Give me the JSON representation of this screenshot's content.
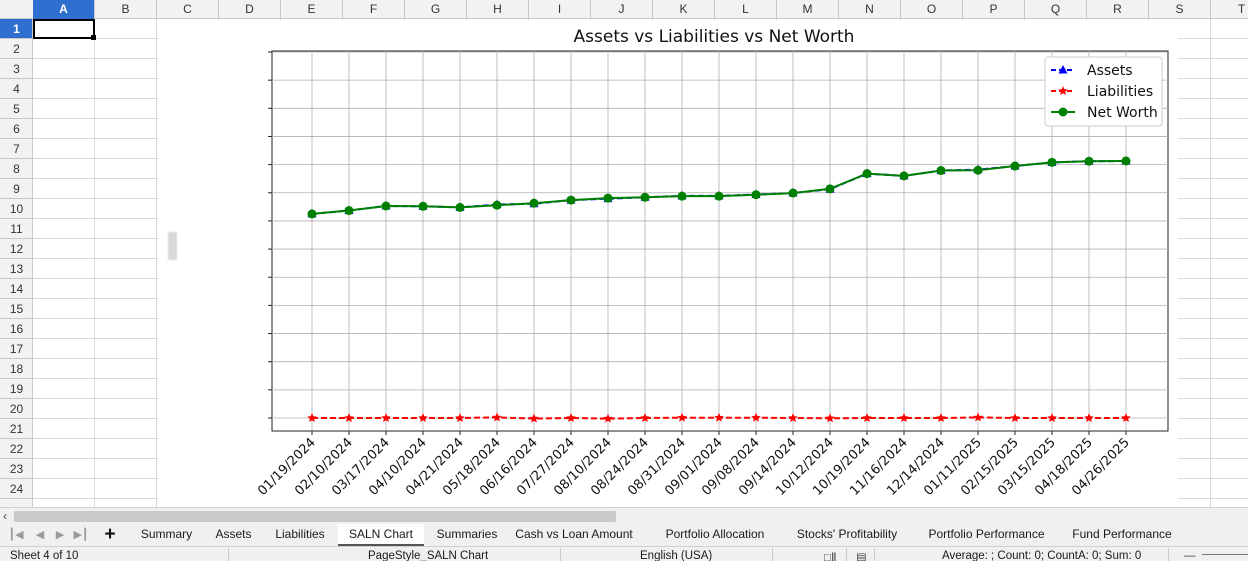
{
  "columns": [
    "A",
    "B",
    "C",
    "D",
    "E",
    "F",
    "G",
    "H",
    "I",
    "J",
    "K",
    "L",
    "M",
    "N",
    "O",
    "P",
    "Q",
    "R",
    "S",
    "T"
  ],
  "rows": [
    "1",
    "2",
    "3",
    "4",
    "5",
    "6",
    "7",
    "8",
    "9",
    "10",
    "11",
    "12",
    "13",
    "14",
    "15",
    "16",
    "17",
    "18",
    "19",
    "20",
    "21",
    "22",
    "23",
    "24"
  ],
  "active_column": "A",
  "active_row": "1",
  "sheet_tabs": [
    {
      "label": "Summary"
    },
    {
      "label": "Assets"
    },
    {
      "label": "Liabilities"
    },
    {
      "label": "SALN Chart",
      "active": true
    },
    {
      "label": "Summaries"
    },
    {
      "label": "Cash vs Loan Amount"
    },
    {
      "label": "Portfolio Allocation"
    },
    {
      "label": "Stocks' Profitability"
    },
    {
      "label": "Portfolio Performance"
    },
    {
      "label": "Fund Performance"
    }
  ],
  "status": {
    "sheet": "Sheet 4 of 10",
    "page_style": "PageStyle_SALN Chart",
    "language": "English (USA)",
    "summary": "Average: ; Count: 0; CountA: 0; Sum: 0"
  },
  "icons": {
    "first_sheet": "first-sheet-icon",
    "prev_sheet": "prev-sheet-icon",
    "next_sheet": "next-sheet-icon",
    "last_sheet": "last-sheet-icon",
    "add_sheet": "plus-icon",
    "scroll_left": "chevron-left-icon"
  },
  "chart_data": {
    "type": "line",
    "title": "Assets vs Liabilities vs Net Worth",
    "xlabel": "",
    "ylabel": "",
    "x": [
      "01/19/2024",
      "02/10/2024",
      "03/17/2024",
      "04/10/2024",
      "04/21/2024",
      "05/18/2024",
      "06/16/2024",
      "07/27/2024",
      "08/10/2024",
      "08/24/2024",
      "08/31/2024",
      "09/01/2024",
      "09/08/2024",
      "09/14/2024",
      "10/12/2024",
      "10/19/2024",
      "11/16/2024",
      "12/14/2024",
      "01/11/2025",
      "02/15/2025",
      "03/15/2025",
      "04/18/2025",
      "04/26/2025"
    ],
    "y_ticks": [
      "",
      "",
      "",
      "",
      "",
      "",
      "",
      "",
      "",
      "",
      "",
      "",
      "",
      ""
    ],
    "ylim": [
      0,
      13
    ],
    "grid": true,
    "legend_position": "top-right",
    "series": [
      {
        "name": "Assets",
        "color": "#0000ff",
        "marker": "triangle",
        "linestyle": "dashed",
        "values": [
          7.25,
          7.37,
          7.53,
          7.52,
          7.48,
          7.58,
          7.61,
          7.74,
          7.79,
          7.84,
          7.89,
          7.89,
          7.94,
          7.99,
          8.13,
          8.68,
          8.6,
          8.79,
          8.82,
          8.95,
          9.08,
          9.12,
          9.13
        ]
      },
      {
        "name": "Liabilities",
        "color": "#ff0000",
        "marker": "star",
        "linestyle": "dashed",
        "values": [
          0.0,
          0.0,
          0.0,
          0.0,
          0.0,
          0.02,
          -0.02,
          0.0,
          -0.02,
          0.0,
          0.01,
          0.01,
          0.01,
          0.0,
          -0.01,
          0.0,
          0.0,
          0.0,
          0.02,
          0.0,
          0.0,
          0.0,
          0.0
        ]
      },
      {
        "name": "Net Worth",
        "color": "#008000",
        "marker": "circle",
        "linestyle": "solid",
        "values": [
          7.25,
          7.37,
          7.53,
          7.52,
          7.48,
          7.56,
          7.63,
          7.74,
          7.81,
          7.84,
          7.88,
          7.88,
          7.93,
          7.99,
          8.14,
          8.68,
          8.6,
          8.79,
          8.8,
          8.95,
          9.08,
          9.12,
          9.13
        ]
      }
    ]
  }
}
